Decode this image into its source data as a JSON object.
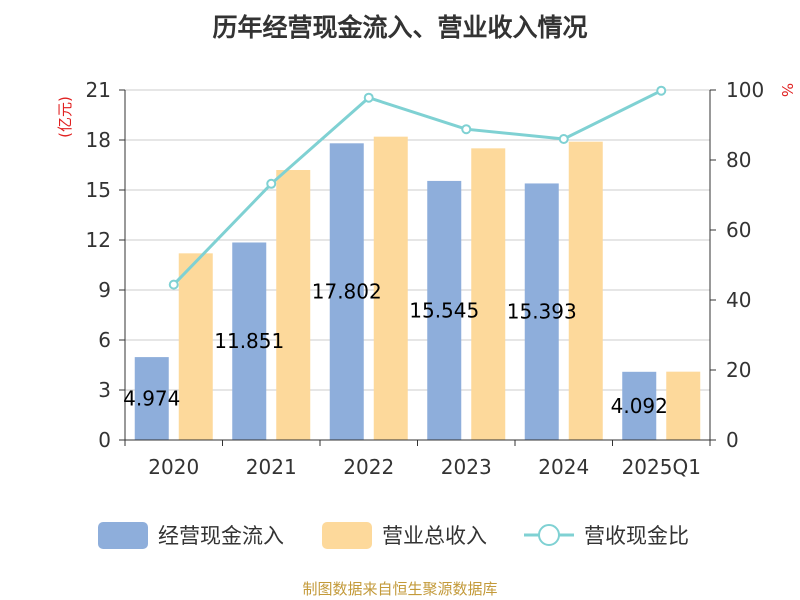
{
  "chart_data": {
    "type": "bar",
    "title": "历年经营现金流入、营业收入情况",
    "categories": [
      "2020",
      "2021",
      "2022",
      "2023",
      "2024",
      "2025Q1"
    ],
    "series": [
      {
        "name": "经营现金流入",
        "type": "bar",
        "axis": "left",
        "color": "#8eaedb",
        "values": [
          4.974,
          11.851,
          17.802,
          15.545,
          15.393,
          4.092
        ],
        "labels": [
          "4.974",
          "11.851",
          "17.802",
          "15.545",
          "15.393",
          "4.092"
        ]
      },
      {
        "name": "营业总收入",
        "type": "bar",
        "axis": "left",
        "color": "#fdd99b",
        "values": [
          11.2,
          16.2,
          18.2,
          17.5,
          17.9,
          4.1
        ]
      },
      {
        "name": "营收现金比",
        "type": "line",
        "axis": "right",
        "color": "#7fd1d3",
        "values": [
          44.4,
          73.2,
          97.8,
          88.8,
          86.0,
          99.8
        ]
      }
    ],
    "y_left": {
      "unit": "(亿元)",
      "min": 0,
      "max": 21,
      "ticks": [
        0,
        3,
        6,
        9,
        12,
        15,
        18,
        21
      ]
    },
    "y_right": {
      "unit": "%",
      "min": 0,
      "max": 100,
      "ticks": [
        0,
        20,
        40,
        60,
        80,
        100
      ]
    },
    "grid": true,
    "legend": "bottom"
  },
  "source": "制图数据来自恒生聚源数据库"
}
